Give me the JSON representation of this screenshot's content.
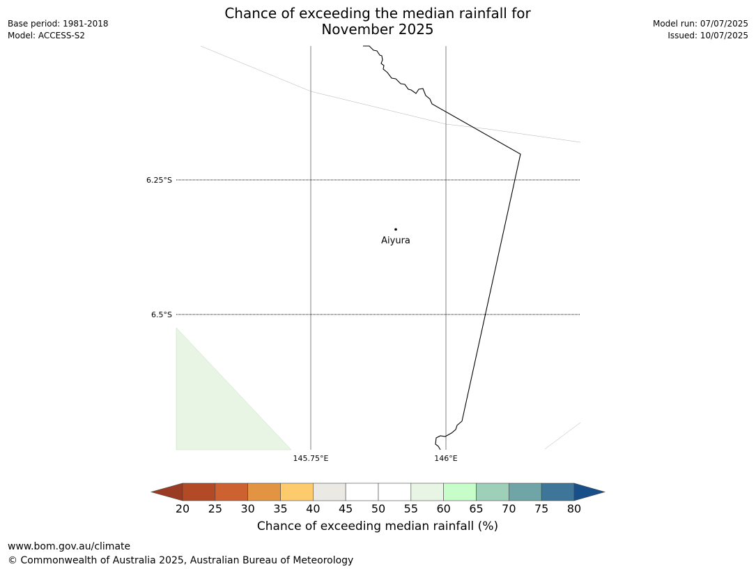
{
  "header": {
    "title_line1": "Chance of exceeding the median rainfall for",
    "title_line2": "November 2025",
    "base_period": "Base period: 1981-2018",
    "model": "Model: ACCESS-S2",
    "model_run": "Model run: 07/07/2025",
    "issued": "Issued: 10/07/2025"
  },
  "map": {
    "lat_labels": [
      "6.25°S",
      "6.5°S"
    ],
    "lon_labels": [
      "145.75°E",
      "146°E"
    ],
    "place": {
      "name": "Aiyura"
    }
  },
  "colorbar": {
    "label": "Chance of exceeding median rainfall (%)",
    "ticks": [
      "20",
      "25",
      "30",
      "35",
      "40",
      "45",
      "50",
      "55",
      "60",
      "65",
      "70",
      "75",
      "80"
    ],
    "low_extend_color": "#9a3b23",
    "high_extend_color": "#175089",
    "colors": [
      "#b24a26",
      "#cd6130",
      "#e39443",
      "#fdcb6b",
      "#ebe9e4",
      "#ffffff",
      "#ffffff",
      "#e8f5e4",
      "#c7fdc8",
      "#9dcfb9",
      "#6fa5a6",
      "#3d7699"
    ]
  },
  "footer": {
    "url": "www.bom.gov.au/climate",
    "copyright": "© Commonwealth of Australia 2025, Australian Bureau of Meteorology"
  }
}
